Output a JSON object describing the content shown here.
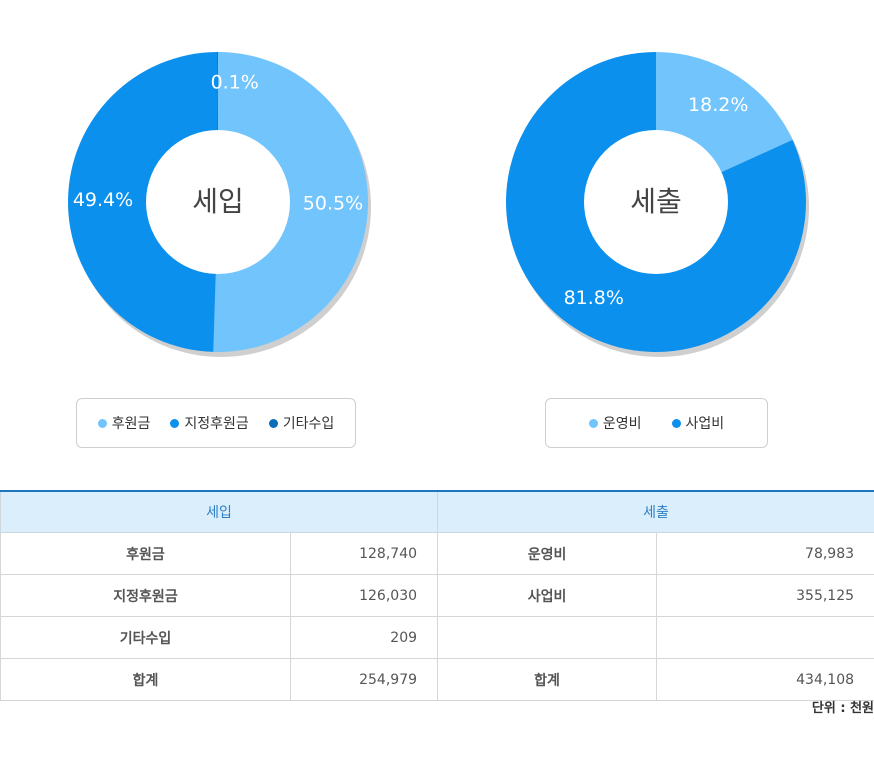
{
  "chart_data": [
    {
      "type": "pie",
      "center_label": "세입",
      "categories": [
        "후원금",
        "지정후원금",
        "기타수입"
      ],
      "values": [
        50.5,
        49.4,
        0.1
      ],
      "labels": [
        "50.5%",
        "49.4%",
        "0.1%"
      ],
      "colors": [
        "#72c4fd",
        "#0b90ee",
        "#0a6fb8"
      ]
    },
    {
      "type": "pie",
      "center_label": "세출",
      "categories": [
        "운영비",
        "사업비"
      ],
      "values": [
        18.2,
        81.8
      ],
      "labels": [
        "18.2%",
        "81.8%"
      ],
      "colors": [
        "#72c4fd",
        "#0b90ee"
      ]
    }
  ],
  "table": {
    "income_header": "세입",
    "expense_header": "세출",
    "rows": [
      {
        "income_label": "후원금",
        "income_value": "128,740",
        "expense_label": "운영비",
        "expense_value": "78,983"
      },
      {
        "income_label": "지정후원금",
        "income_value": "126,030",
        "expense_label": "사업비",
        "expense_value": "355,125"
      },
      {
        "income_label": "기타수입",
        "income_value": "209",
        "expense_label": "",
        "expense_value": ""
      },
      {
        "income_label": "합계",
        "income_value": "254,979",
        "expense_label": "합계",
        "expense_value": "434,108"
      }
    ]
  },
  "unit_note": "단위 : 천원"
}
